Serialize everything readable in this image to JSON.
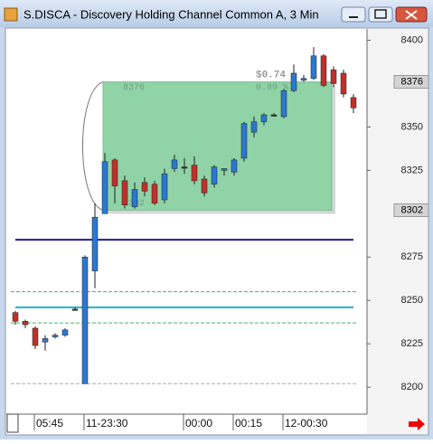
{
  "window_title": "S.DISCA - Discovery Holding Channel Common A, 3 Min",
  "chart_data": {
    "type": "candlestick",
    "up_color": "#2a78d0",
    "down_color": "#c0302a",
    "flat_color": "#333333",
    "categories": [
      null,
      null,
      "05:45",
      null,
      null,
      null,
      null,
      "11-23:30",
      null,
      null,
      null,
      null,
      null,
      null,
      null,
      null,
      null,
      "00:00",
      null,
      null,
      null,
      null,
      "00:15",
      null,
      null,
      null,
      null,
      "12-00:30",
      null,
      null,
      null,
      null,
      null,
      null,
      null
    ],
    "candles": [
      {
        "open": 8243,
        "high": 8244,
        "low": 8236,
        "close": 8238
      },
      {
        "open": 8238,
        "high": 8239,
        "low": 8234,
        "close": 8236
      },
      {
        "open": 8234,
        "high": 8235,
        "low": 8222,
        "close": 8224
      },
      {
        "open": 8226,
        "high": 8230,
        "low": 8221,
        "close": 8228
      },
      {
        "open": 8229,
        "high": 8231,
        "low": 8228,
        "close": 8230
      },
      {
        "open": 8230,
        "high": 8234,
        "low": 8229,
        "close": 8233
      },
      {
        "open": 8245,
        "high": 8246,
        "low": 8244,
        "close": 8245
      },
      {
        "open": 8202,
        "high": 8276,
        "low": 8202,
        "close": 8275
      },
      {
        "open": 8267,
        "high": 8306,
        "low": 8257,
        "close": 8298
      },
      {
        "open": 8300,
        "high": 8335,
        "low": 8300,
        "close": 8330
      },
      {
        "open": 8331,
        "high": 8332,
        "low": 8306,
        "close": 8316
      },
      {
        "open": 8319,
        "high": 8322,
        "low": 8303,
        "close": 8305
      },
      {
        "open": 8304,
        "high": 8318,
        "low": 8303,
        "close": 8314
      },
      {
        "open": 8318,
        "high": 8321,
        "low": 8310,
        "close": 8313
      },
      {
        "open": 8317,
        "high": 8319,
        "low": 8305,
        "close": 8306
      },
      {
        "open": 8308,
        "high": 8326,
        "low": 8306,
        "close": 8323
      },
      {
        "open": 8326,
        "high": 8334,
        "low": 8324,
        "close": 8331
      },
      {
        "open": 8327,
        "high": 8332,
        "low": 8323,
        "close": 8327
      },
      {
        "open": 8328,
        "high": 8333,
        "low": 8317,
        "close": 8319
      },
      {
        "open": 8320,
        "high": 8322,
        "low": 8310,
        "close": 8312
      },
      {
        "open": 8317,
        "high": 8328,
        "low": 8315,
        "close": 8327
      },
      {
        "open": 8325,
        "high": 8326,
        "low": 8322,
        "close": 8326
      },
      {
        "open": 8324,
        "high": 8332,
        "low": 8322,
        "close": 8331
      },
      {
        "open": 8332,
        "high": 8353,
        "low": 8330,
        "close": 8352
      },
      {
        "open": 8347,
        "high": 8356,
        "low": 8344,
        "close": 8353
      },
      {
        "open": 8353,
        "high": 8358,
        "low": 8351,
        "close": 8357
      },
      {
        "open": 8357,
        "high": 8358,
        "low": 8356,
        "close": 8357
      },
      {
        "open": 8356,
        "high": 8372,
        "low": 8355,
        "close": 8371
      },
      {
        "open": 8371,
        "high": 8386,
        "low": 8370,
        "close": 8381
      },
      {
        "open": 8377,
        "high": 8380,
        "low": 8376,
        "close": 8378
      },
      {
        "open": 8378,
        "high": 8396,
        "low": 8377,
        "close": 8391
      },
      {
        "open": 8391,
        "high": 8392,
        "low": 8373,
        "close": 8374
      },
      {
        "open": 8383,
        "high": 8385,
        "low": 8373,
        "close": 8375
      },
      {
        "open": 8381,
        "high": 8383,
        "low": 8367,
        "close": 8369
      },
      {
        "open": 8367,
        "high": 8369,
        "low": 8358,
        "close": 8361
      }
    ],
    "ylim": [
      8186,
      8406
    ],
    "yticks": [
      8200,
      8225,
      8250,
      8275,
      8325,
      8350,
      8400
    ],
    "price_markers": [
      8376,
      8302
    ],
    "lines": [
      {
        "value": 8285,
        "color": "#1a1aa8",
        "dashed": false
      },
      {
        "value": 8246,
        "color": "#1fb3c8",
        "dashed": false
      },
      {
        "value": 8255,
        "color": "#3cb86a",
        "dashed": true
      },
      {
        "value": 8237,
        "color": "#3cb86a",
        "dashed": true
      },
      {
        "value": 8202,
        "color": "#aaaaaa",
        "dashed": true
      }
    ],
    "box": {
      "start": 9,
      "end": 32,
      "high": 8376,
      "low": 8302,
      "change": "$0.74",
      "percent": "0.89 %",
      "color": "#8fd3a6"
    }
  }
}
